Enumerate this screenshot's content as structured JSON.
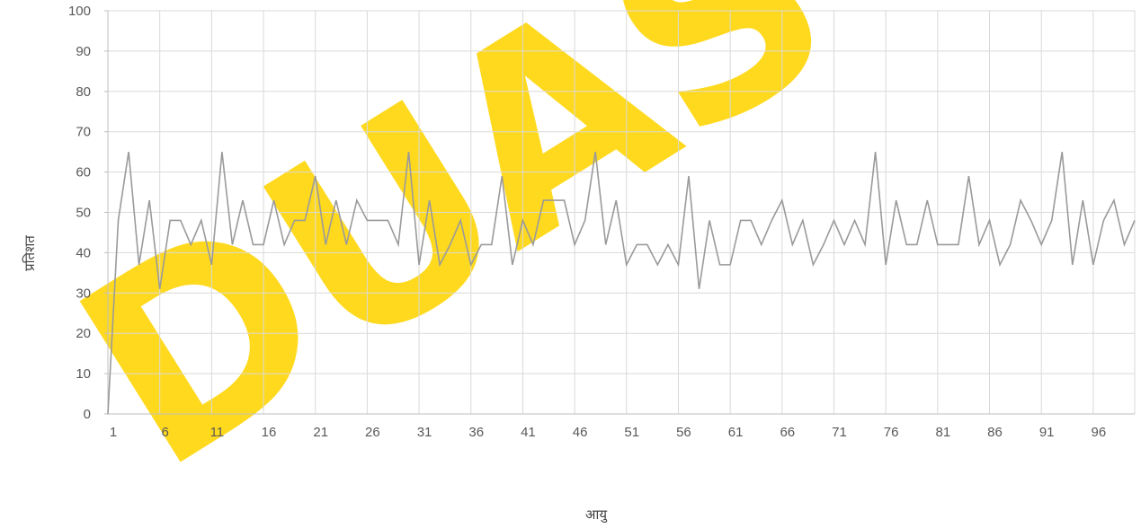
{
  "watermark": "DUAS",
  "colors": {
    "line": "#9a9a9a",
    "grid": "#d9d9d9",
    "axis": "#bfbfbf",
    "watermark": "#ffd400"
  },
  "chart_data": {
    "type": "line",
    "title": "",
    "xlabel": "आयु",
    "ylabel": "प्रतिशत",
    "ylim": [
      0,
      100
    ],
    "yticks": [
      0,
      10,
      20,
      30,
      40,
      50,
      60,
      70,
      80,
      90,
      100
    ],
    "xlim": [
      1,
      100
    ],
    "xticks": [
      1,
      6,
      11,
      16,
      21,
      26,
      31,
      36,
      41,
      46,
      51,
      56,
      61,
      66,
      71,
      76,
      81,
      86,
      91,
      96
    ],
    "grid": true,
    "legend": "none",
    "series": [
      {
        "values": [
          0,
          48,
          65,
          37,
          53,
          31,
          48,
          48,
          42,
          48,
          37,
          65,
          42,
          53,
          42,
          42,
          53,
          42,
          48,
          48,
          59,
          42,
          53,
          42,
          53,
          48,
          48,
          48,
          42,
          65,
          37,
          53,
          37,
          42,
          48,
          37,
          42,
          42,
          59,
          37,
          48,
          42,
          53,
          53,
          53,
          42,
          48,
          65,
          42,
          53,
          37,
          42,
          42,
          37,
          42,
          37,
          59,
          31,
          48,
          37,
          37,
          48,
          48,
          42,
          48,
          53,
          42,
          48,
          37,
          42,
          48,
          42,
          48,
          42,
          65,
          37,
          53,
          42,
          42,
          53,
          42,
          42,
          42,
          59,
          42,
          48,
          37,
          42,
          53,
          48,
          42,
          48,
          65,
          37,
          53,
          37,
          48,
          53,
          42,
          48
        ]
      }
    ]
  }
}
